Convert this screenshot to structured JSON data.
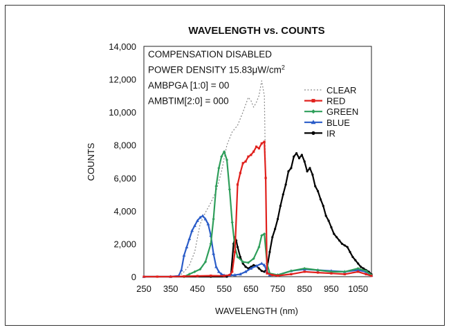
{
  "chart_data": {
    "type": "line",
    "title": "WAVELENGTH vs. COUNTS",
    "xlabel": "WAVELENGTH (nm)",
    "ylabel": "COUNTS",
    "xlim": [
      250,
      1100
    ],
    "ylim": [
      0,
      14000
    ],
    "xticks": [
      "250",
      "350",
      "450",
      "550",
      "650",
      "750",
      "850",
      "950",
      "1050"
    ],
    "yticks": [
      "0",
      "2,000",
      "4,000",
      "6,000",
      "8,000",
      "10,000",
      "12,000",
      "14,000"
    ],
    "annotations": [
      "COMPENSATION DISABLED",
      "POWER DENSITY 15.83μW/cm²",
      "AMBPGA [1:0] = 00",
      "AMBTIM[2:0] = 000"
    ],
    "legend_position": "top-right",
    "grid": false,
    "series": [
      {
        "name": "CLEAR",
        "color": "#888888",
        "style": "dotted",
        "x": [
          380,
          400,
          420,
          440,
          460,
          480,
          500,
          520,
          540,
          560,
          580,
          600,
          620,
          640,
          650,
          660,
          670,
          680,
          690,
          700,
          710
        ],
        "y": [
          0,
          300,
          700,
          1500,
          3200,
          3900,
          4500,
          5200,
          6400,
          8000,
          8800,
          9200,
          10000,
          10900,
          10700,
          10300,
          10600,
          11000,
          11900,
          11000,
          0
        ]
      },
      {
        "name": "RED",
        "color": "#e0201c",
        "style": "solid",
        "x": [
          250,
          300,
          350,
          400,
          450,
          500,
          550,
          570,
          580,
          590,
          600,
          610,
          620,
          630,
          640,
          650,
          660,
          670,
          680,
          690,
          700,
          705,
          710,
          730,
          750,
          800,
          850,
          900,
          950,
          1000,
          1050,
          1080,
          1100
        ],
        "y": [
          0,
          0,
          0,
          20,
          40,
          60,
          50,
          100,
          300,
          1500,
          5600,
          6300,
          6900,
          7000,
          7300,
          7400,
          7600,
          7900,
          7800,
          8100,
          8200,
          6000,
          200,
          100,
          60,
          150,
          300,
          250,
          200,
          150,
          300,
          150,
          50
        ]
      },
      {
        "name": "GREEN",
        "color": "#2e9e5a",
        "style": "solid",
        "x": [
          400,
          420,
          440,
          460,
          480,
          500,
          510,
          520,
          530,
          540,
          550,
          560,
          570,
          580,
          590,
          600,
          620,
          640,
          660,
          680,
          690,
          700,
          710,
          720,
          750,
          800,
          850,
          900,
          950,
          1000,
          1050,
          1080,
          1100
        ],
        "y": [
          0,
          150,
          300,
          450,
          900,
          2000,
          3500,
          5500,
          6600,
          7300,
          7600,
          7100,
          5300,
          3300,
          1800,
          1200,
          900,
          850,
          1100,
          1800,
          2500,
          2600,
          800,
          200,
          100,
          350,
          500,
          400,
          300,
          300,
          500,
          350,
          100
        ]
      },
      {
        "name": "BLUE",
        "color": "#2a5cc8",
        "style": "solid",
        "x": [
          250,
          350,
          380,
          390,
          400,
          410,
          420,
          430,
          440,
          450,
          460,
          470,
          480,
          490,
          500,
          510,
          520,
          530,
          540,
          550,
          570,
          590,
          610,
          630,
          650,
          670,
          690,
          700,
          710,
          720,
          750,
          800,
          850,
          900,
          950,
          1000,
          1050,
          1080,
          1100
        ],
        "y": [
          0,
          0,
          50,
          400,
          1300,
          1800,
          2300,
          2800,
          3100,
          3400,
          3600,
          3700,
          3500,
          3200,
          2500,
          1400,
          600,
          300,
          150,
          80,
          80,
          100,
          150,
          300,
          500,
          650,
          800,
          700,
          300,
          100,
          100,
          350,
          450,
          400,
          350,
          300,
          400,
          300,
          80
        ]
      },
      {
        "name": "IR",
        "color": "#000000",
        "style": "solid",
        "x": [
          250,
          400,
          500,
          560,
          575,
          585,
          590,
          595,
          600,
          610,
          620,
          630,
          640,
          650,
          660,
          670,
          680,
          690,
          700,
          710,
          720,
          730,
          740,
          750,
          760,
          770,
          780,
          790,
          800,
          810,
          820,
          830,
          840,
          850,
          860,
          870,
          880,
          890,
          900,
          910,
          920,
          930,
          940,
          950,
          960,
          970,
          980,
          990,
          1000,
          1010,
          1020,
          1030,
          1040,
          1050,
          1060,
          1070,
          1080,
          1090,
          1100
        ],
        "y": [
          0,
          0,
          0,
          0,
          100,
          2000,
          2400,
          2200,
          1800,
          1200,
          800,
          600,
          500,
          600,
          700,
          650,
          500,
          350,
          300,
          500,
          1500,
          2400,
          2900,
          3500,
          4300,
          5000,
          5600,
          6400,
          6600,
          7300,
          7500,
          7200,
          7400,
          7000,
          6400,
          6600,
          6200,
          5500,
          5200,
          4700,
          4300,
          3700,
          3400,
          3000,
          2600,
          2400,
          2200,
          2000,
          1900,
          1800,
          1500,
          1200,
          1000,
          800,
          600,
          500,
          400,
          300,
          150
        ]
      }
    ]
  }
}
